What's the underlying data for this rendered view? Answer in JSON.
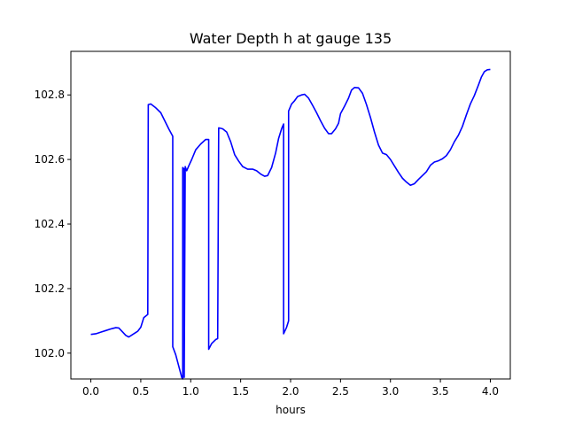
{
  "chart_data": {
    "type": "line",
    "title": "Water Depth h at gauge 135",
    "xlabel": "hours",
    "ylabel": "",
    "xlim": [
      -0.2,
      4.2
    ],
    "ylim": [
      101.92,
      102.935
    ],
    "xticks": [
      0.0,
      0.5,
      1.0,
      1.5,
      2.0,
      2.5,
      3.0,
      3.5,
      4.0
    ],
    "xtick_labels": [
      "0.0",
      "0.5",
      "1.0",
      "1.5",
      "2.0",
      "2.5",
      "3.0",
      "3.5",
      "4.0"
    ],
    "yticks": [
      102.0,
      102.2,
      102.4,
      102.6,
      102.8
    ],
    "ytick_labels": [
      "102.0",
      "102.2",
      "102.4",
      "102.6",
      "102.8"
    ],
    "grid": false,
    "colors": {
      "line": "#0000ff"
    },
    "series": [
      {
        "points": [
          [
            0.0,
            102.058
          ],
          [
            0.05,
            102.06
          ],
          [
            0.1,
            102.065
          ],
          [
            0.15,
            102.07
          ],
          [
            0.2,
            102.075
          ],
          [
            0.25,
            102.079
          ],
          [
            0.28,
            102.078
          ],
          [
            0.32,
            102.065
          ],
          [
            0.35,
            102.055
          ],
          [
            0.38,
            102.05
          ],
          [
            0.42,
            102.058
          ],
          [
            0.47,
            102.068
          ],
          [
            0.5,
            102.08
          ],
          [
            0.53,
            102.11
          ],
          [
            0.57,
            102.12
          ],
          [
            0.575,
            102.77
          ],
          [
            0.6,
            102.772
          ],
          [
            0.65,
            102.76
          ],
          [
            0.7,
            102.745
          ],
          [
            0.74,
            102.72
          ],
          [
            0.78,
            102.695
          ],
          [
            0.82,
            102.672
          ],
          [
            0.82,
            102.02
          ],
          [
            0.85,
            101.995
          ],
          [
            0.88,
            101.96
          ],
          [
            0.91,
            101.925
          ],
          [
            0.92,
            101.92
          ],
          [
            0.92,
            102.575
          ],
          [
            0.935,
            102.57
          ],
          [
            0.935,
            101.925
          ],
          [
            0.945,
            102.578
          ],
          [
            0.96,
            102.565
          ],
          [
            0.98,
            102.58
          ],
          [
            1.01,
            102.6
          ],
          [
            1.05,
            102.63
          ],
          [
            1.1,
            102.648
          ],
          [
            1.15,
            102.662
          ],
          [
            1.18,
            102.662
          ],
          [
            1.18,
            102.012
          ],
          [
            1.21,
            102.03
          ],
          [
            1.25,
            102.042
          ],
          [
            1.27,
            102.045
          ],
          [
            1.28,
            102.698
          ],
          [
            1.32,
            102.695
          ],
          [
            1.36,
            102.685
          ],
          [
            1.4,
            102.655
          ],
          [
            1.44,
            102.615
          ],
          [
            1.48,
            102.595
          ],
          [
            1.52,
            102.578
          ],
          [
            1.57,
            102.57
          ],
          [
            1.62,
            102.57
          ],
          [
            1.66,
            102.565
          ],
          [
            1.7,
            102.555
          ],
          [
            1.74,
            102.548
          ],
          [
            1.77,
            102.55
          ],
          [
            1.81,
            102.575
          ],
          [
            1.85,
            102.62
          ],
          [
            1.88,
            102.665
          ],
          [
            1.91,
            102.695
          ],
          [
            1.93,
            102.71
          ],
          [
            1.93,
            102.06
          ],
          [
            1.96,
            102.08
          ],
          [
            1.98,
            102.1
          ],
          [
            1.98,
            102.75
          ],
          [
            2.01,
            102.772
          ],
          [
            2.04,
            102.782
          ],
          [
            2.07,
            102.795
          ],
          [
            2.11,
            102.8
          ],
          [
            2.14,
            102.802
          ],
          [
            2.18,
            102.79
          ],
          [
            2.22,
            102.768
          ],
          [
            2.26,
            102.745
          ],
          [
            2.3,
            102.72
          ],
          [
            2.34,
            102.697
          ],
          [
            2.38,
            102.68
          ],
          [
            2.41,
            102.68
          ],
          [
            2.45,
            102.695
          ],
          [
            2.48,
            102.712
          ],
          [
            2.5,
            102.742
          ],
          [
            2.54,
            102.765
          ],
          [
            2.58,
            102.79
          ],
          [
            2.61,
            102.815
          ],
          [
            2.64,
            102.823
          ],
          [
            2.68,
            102.822
          ],
          [
            2.72,
            102.805
          ],
          [
            2.76,
            102.77
          ],
          [
            2.8,
            102.73
          ],
          [
            2.84,
            102.685
          ],
          [
            2.88,
            102.645
          ],
          [
            2.92,
            102.62
          ],
          [
            2.96,
            102.615
          ],
          [
            3.0,
            102.6
          ],
          [
            3.04,
            102.58
          ],
          [
            3.08,
            102.56
          ],
          [
            3.12,
            102.542
          ],
          [
            3.16,
            102.53
          ],
          [
            3.2,
            102.52
          ],
          [
            3.24,
            102.525
          ],
          [
            3.28,
            102.538
          ],
          [
            3.32,
            102.55
          ],
          [
            3.36,
            102.562
          ],
          [
            3.4,
            102.582
          ],
          [
            3.44,
            102.592
          ],
          [
            3.48,
            102.596
          ],
          [
            3.52,
            102.602
          ],
          [
            3.56,
            102.612
          ],
          [
            3.6,
            102.63
          ],
          [
            3.64,
            102.655
          ],
          [
            3.68,
            102.675
          ],
          [
            3.72,
            102.702
          ],
          [
            3.76,
            102.738
          ],
          [
            3.8,
            102.772
          ],
          [
            3.84,
            102.798
          ],
          [
            3.88,
            102.83
          ],
          [
            3.91,
            102.855
          ],
          [
            3.94,
            102.872
          ],
          [
            3.97,
            102.878
          ],
          [
            4.0,
            102.879
          ]
        ]
      }
    ]
  }
}
